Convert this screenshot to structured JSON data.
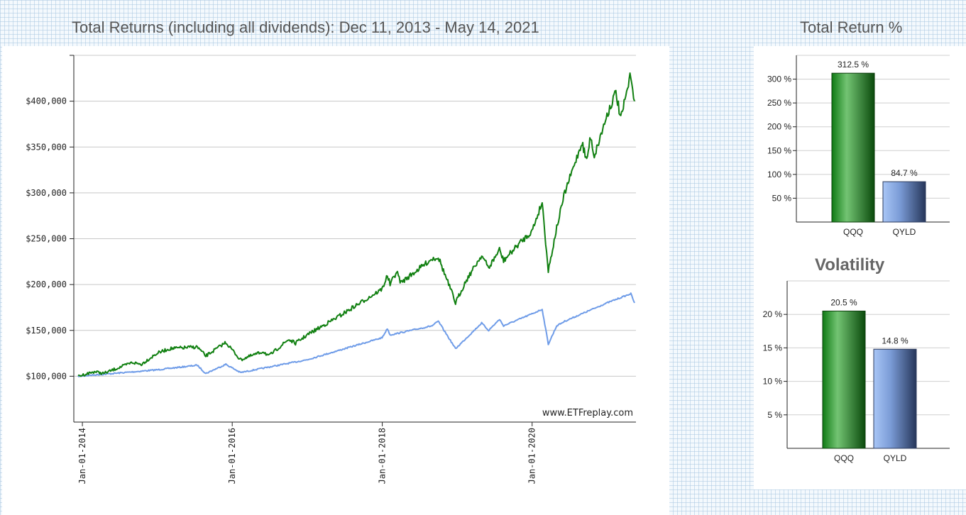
{
  "main_title": "Total Returns (including all dividends): Dec 11, 2013 - May 14, 2021",
  "total_return_title": "Total Return %",
  "volatility_title": "Volatility",
  "watermark": "www.ETFreplay.com",
  "colors": {
    "QQQ": "#118011",
    "QYLD": "#6f9ce8"
  },
  "chart_data": [
    {
      "type": "line",
      "title": "Total Returns (including all dividends): Dec 11, 2013 - May 14, 2021",
      "xlim": [
        "2013-12-11",
        "2021-05-14"
      ],
      "ylim": [
        50000,
        450000
      ],
      "yticks": [
        100000,
        150000,
        200000,
        250000,
        300000,
        350000,
        400000
      ],
      "ytick_labels": [
        "$100,000",
        "$150,000",
        "$200,000",
        "$250,000",
        "$300,000",
        "$350,000",
        "$400,000"
      ],
      "xticks": [
        "2014-01-01",
        "2016-01-01",
        "2018-01-01",
        "2020-01-01"
      ],
      "xtick_labels": [
        "Jan-01-2014",
        "Jan-01-2016",
        "Jan-01-2018",
        "Jan-01-2020"
      ],
      "grid": true,
      "series": [
        {
          "name": "QQQ",
          "x": [
            "2013-12-11",
            "2014-03-01",
            "2014-04-15",
            "2014-09-01",
            "2014-10-15",
            "2014-12-31",
            "2015-03-01",
            "2015-07-15",
            "2015-08-25",
            "2015-12-01",
            "2016-02-10",
            "2016-06-01",
            "2016-06-27",
            "2016-10-01",
            "2016-11-04",
            "2016-12-31",
            "2017-06-01",
            "2017-12-31",
            "2018-01-26",
            "2018-02-08",
            "2018-03-12",
            "2018-04-02",
            "2018-08-30",
            "2018-10-01",
            "2018-12-24",
            "2019-02-15",
            "2019-04-30",
            "2019-06-03",
            "2019-07-26",
            "2019-08-15",
            "2019-10-31",
            "2019-12-31",
            "2020-02-19",
            "2020-03-20",
            "2020-04-30",
            "2020-06-08",
            "2020-08-31",
            "2020-09-23",
            "2020-10-12",
            "2020-10-30",
            "2020-12-31",
            "2021-02-12",
            "2021-03-08",
            "2021-04-26",
            "2021-05-14"
          ],
          "y": [
            100000,
            105000,
            103000,
            115000,
            113000,
            125000,
            130000,
            132000,
            122000,
            137000,
            118000,
            127000,
            122000,
            140000,
            136000,
            145000,
            165000,
            195000,
            210000,
            200000,
            214000,
            202000,
            228000,
            230000,
            180000,
            205000,
            232000,
            218000,
            238000,
            226000,
            245000,
            258000,
            290000,
            215000,
            262000,
            300000,
            355000,
            335000,
            362000,
            340000,
            385000,
            410000,
            380000,
            430000,
            400000
          ]
        },
        {
          "name": "QYLD",
          "x": [
            "2013-12-11",
            "2014-06-01",
            "2014-12-31",
            "2015-07-15",
            "2015-08-25",
            "2015-12-01",
            "2016-02-10",
            "2016-12-31",
            "2017-12-31",
            "2018-01-26",
            "2018-02-08",
            "2018-09-01",
            "2018-10-01",
            "2018-12-24",
            "2019-04-30",
            "2019-06-03",
            "2019-07-26",
            "2019-08-15",
            "2019-12-31",
            "2020-02-19",
            "2020-03-20",
            "2020-04-30",
            "2020-06-08",
            "2020-12-31",
            "2021-04-26",
            "2021-05-14"
          ],
          "y": [
            100000,
            103000,
            107000,
            112000,
            103000,
            113000,
            104000,
            118000,
            142000,
            152000,
            145000,
            155000,
            160000,
            130000,
            158000,
            150000,
            162000,
            155000,
            168000,
            173000,
            135000,
            155000,
            160000,
            180000,
            190000,
            180000
          ]
        }
      ]
    },
    {
      "type": "bar",
      "title": "Total Return %",
      "categories": [
        "QQQ",
        "QYLD"
      ],
      "values": [
        312.5,
        84.7
      ],
      "value_labels": [
        "312.5 %",
        "84.7 %"
      ],
      "yticks": [
        50,
        100,
        150,
        200,
        250,
        300
      ],
      "ytick_labels": [
        "50 %",
        "100 %",
        "150 %",
        "200 %",
        "250 %",
        "300 %"
      ],
      "ylim": [
        0,
        350
      ]
    },
    {
      "type": "bar",
      "title": "Volatility",
      "categories": [
        "QQQ",
        "QYLD"
      ],
      "values": [
        20.5,
        14.8
      ],
      "value_labels": [
        "20.5 %",
        "14.8 %"
      ],
      "yticks": [
        5,
        10,
        15,
        20
      ],
      "ytick_labels": [
        "5 %",
        "10 %",
        "15 %",
        "20 %"
      ],
      "ylim": [
        0,
        25
      ]
    }
  ]
}
